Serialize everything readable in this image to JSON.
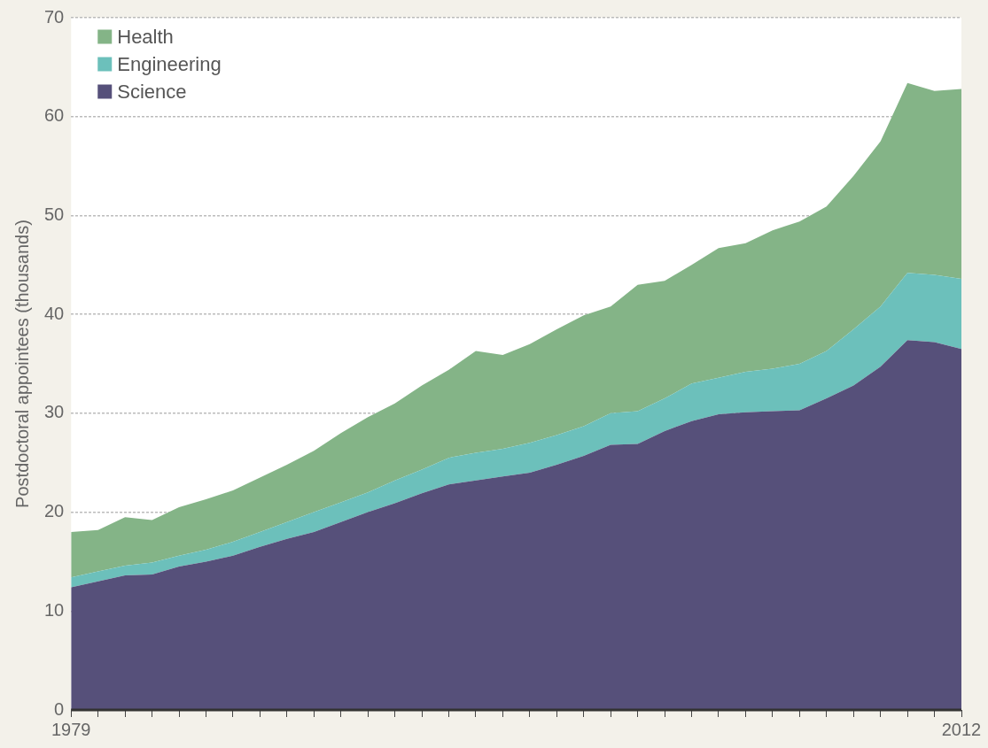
{
  "chart_data": {
    "type": "area",
    "ylabel": "Postdoctoral appointees (thousands)",
    "stacked": true,
    "x": [
      1979,
      1980,
      1981,
      1982,
      1983,
      1984,
      1985,
      1986,
      1987,
      1988,
      1989,
      1990,
      1991,
      1992,
      1993,
      1994,
      1995,
      1996,
      1997,
      1998,
      1999,
      2000,
      2001,
      2002,
      2003,
      2004,
      2005,
      2006,
      2007,
      2008,
      2009,
      2010,
      2011,
      2012
    ],
    "series": [
      {
        "name": "Science",
        "color": "#56507a",
        "values": [
          12.4,
          13.0,
          13.6,
          13.7,
          14.5,
          15.0,
          15.6,
          16.5,
          17.3,
          18.0,
          19.0,
          20.0,
          20.9,
          21.9,
          22.8,
          23.2,
          23.6,
          24.0,
          24.8,
          25.7,
          26.8,
          26.9,
          28.2,
          29.2,
          29.9,
          30.1,
          30.2,
          30.3,
          31.5,
          32.8,
          34.7,
          37.4,
          37.2,
          36.5
        ]
      },
      {
        "name": "Engineering",
        "color": "#6cc0bb",
        "values": [
          1.0,
          1.0,
          1.0,
          1.2,
          1.1,
          1.2,
          1.4,
          1.5,
          1.7,
          2.0,
          2.0,
          2.0,
          2.3,
          2.4,
          2.7,
          2.8,
          2.8,
          3.0,
          3.0,
          3.0,
          3.2,
          3.3,
          3.3,
          3.8,
          3.7,
          4.1,
          4.3,
          4.7,
          4.8,
          5.7,
          6.1,
          6.8,
          6.8,
          7.1
        ]
      },
      {
        "name": "Health",
        "color": "#84b487",
        "values": [
          4.6,
          4.2,
          4.9,
          4.3,
          4.9,
          5.1,
          5.2,
          5.5,
          5.8,
          6.2,
          7.0,
          7.6,
          7.8,
          8.5,
          8.9,
          10.3,
          9.5,
          10.0,
          10.7,
          11.2,
          10.8,
          12.8,
          11.9,
          12.0,
          13.1,
          13.0,
          14.0,
          14.4,
          14.6,
          15.5,
          16.7,
          19.2,
          18.6,
          19.2
        ]
      }
    ],
    "xlim": [
      1979,
      2012
    ],
    "xticks": [
      1979,
      {
        "value": 1980,
        "label": null
      },
      {
        "value": 1981,
        "label": null
      },
      {
        "value": 1982,
        "label": null
      },
      {
        "value": 1983,
        "label": null
      },
      {
        "value": 1984,
        "label": null
      },
      {
        "value": 1985,
        "label": null
      },
      {
        "value": 1986,
        "label": null
      },
      {
        "value": 1987,
        "label": null
      },
      {
        "value": 1988,
        "label": null
      },
      {
        "value": 1989,
        "label": null
      },
      {
        "value": 1990,
        "label": null
      },
      {
        "value": 1991,
        "label": null
      },
      {
        "value": 1992,
        "label": null
      },
      {
        "value": 1993,
        "label": null
      },
      {
        "value": 1994,
        "label": null
      },
      {
        "value": 1995,
        "label": null
      },
      {
        "value": 1996,
        "label": null
      },
      {
        "value": 1997,
        "label": null
      },
      {
        "value": 1998,
        "label": null
      },
      {
        "value": 1999,
        "label": null
      },
      {
        "value": 2000,
        "label": null
      },
      {
        "value": 2001,
        "label": null
      },
      {
        "value": 2002,
        "label": null
      },
      {
        "value": 2003,
        "label": null
      },
      {
        "value": 2004,
        "label": null
      },
      {
        "value": 2005,
        "label": null
      },
      {
        "value": 2006,
        "label": null
      },
      {
        "value": 2007,
        "label": null
      },
      {
        "value": 2008,
        "label": null
      },
      {
        "value": 2009,
        "label": null
      },
      {
        "value": 2010,
        "label": null
      },
      {
        "value": 2011,
        "label": null
      },
      2012
    ],
    "ylim": [
      0,
      70
    ],
    "yticks": [
      0,
      10,
      20,
      30,
      40,
      50,
      60,
      70
    ],
    "grid": "y",
    "legend": "top left",
    "marker": "none"
  }
}
